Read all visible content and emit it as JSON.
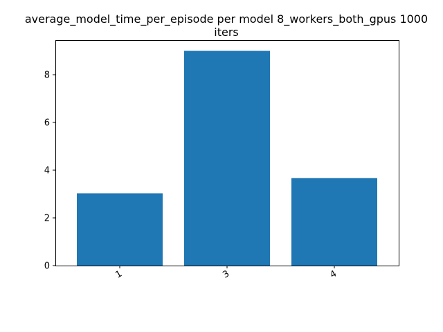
{
  "chart_data": {
    "type": "bar",
    "title_lines": [
      "average_model_time_per_episode per model 8_workers_both_gpus 1000",
      "iters"
    ],
    "xlabel": "",
    "ylabel": "",
    "categories": [
      "1",
      "3",
      "4"
    ],
    "values": [
      3.03,
      9.0,
      3.67
    ],
    "ylim": [
      0,
      9.45
    ],
    "yticks": [
      0,
      2,
      4,
      6,
      8
    ],
    "grid": false,
    "bar_color": "#1f77b4"
  }
}
